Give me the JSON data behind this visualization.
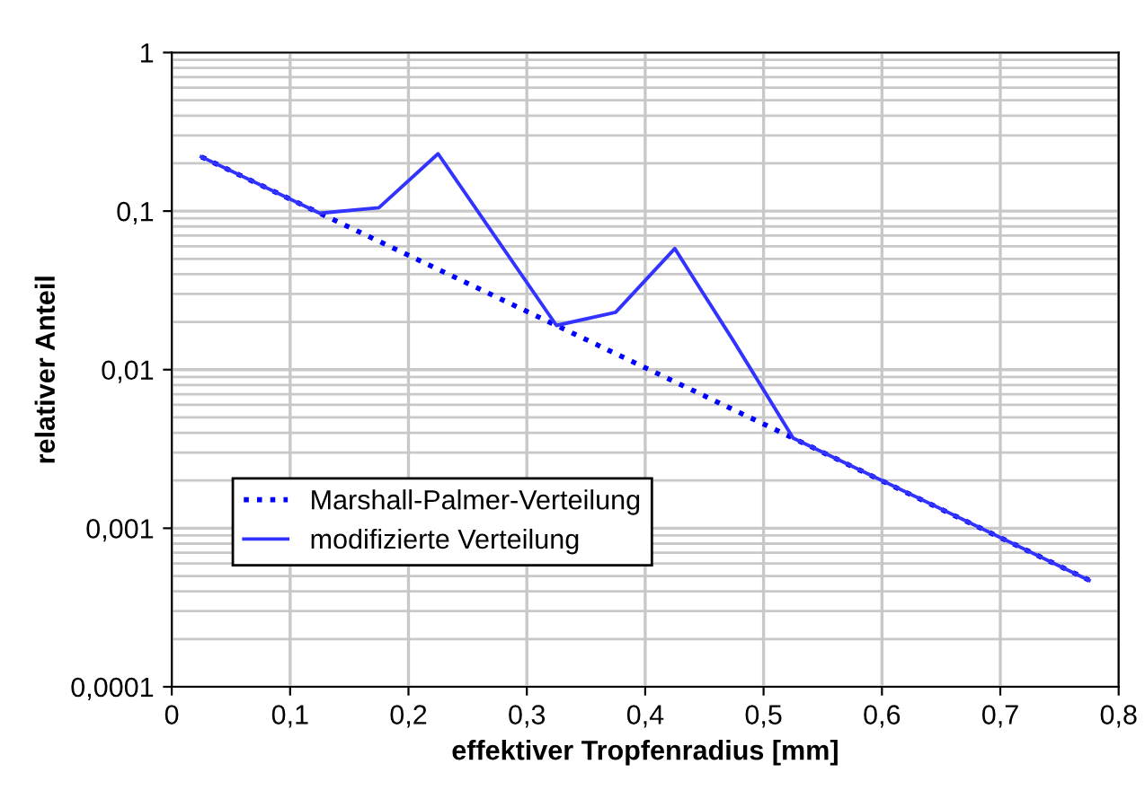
{
  "chart_data": {
    "type": "line",
    "xlabel": "effektiver Tropfenradius [mm]",
    "ylabel": "relativer Anteil",
    "log": "y",
    "xlim": [
      0,
      0.8
    ],
    "ylim": [
      0.0001,
      1
    ],
    "xticks": [
      0,
      {
        "value": 0.1,
        "label": "0,1"
      },
      {
        "value": 0.2,
        "label": "0,2"
      },
      {
        "value": 0.3,
        "label": "0,3"
      },
      {
        "value": 0.4,
        "label": "0,4"
      },
      {
        "value": 0.5,
        "label": "0,5"
      },
      {
        "value": 0.6,
        "label": "0,6"
      },
      {
        "value": 0.7,
        "label": "0,7"
      },
      {
        "value": 0.8,
        "label": "0,8"
      }
    ],
    "yticks": [
      {
        "value": 0.0001,
        "label": "0,0001"
      },
      {
        "value": 0.001,
        "label": "0,001"
      },
      {
        "value": 0.01,
        "label": "0,01"
      },
      {
        "value": 0.1,
        "label": "0,1"
      },
      1
    ],
    "grid": true,
    "legend": "bottom left",
    "series": [
      {
        "name": "Marshall-Palmer-Verteilung",
        "color": "#0000ff",
        "line_style": "dotted",
        "x": [
          0.025,
          0.125,
          0.325,
          0.525,
          0.775
        ],
        "values": [
          0.22,
          0.097,
          0.019,
          0.0037,
          0.00047
        ]
      },
      {
        "name": "modifizierte Verteilung",
        "color": "#3333ff",
        "line_style": "solid",
        "x": [
          0.025,
          0.125,
          0.175,
          0.225,
          0.325,
          0.375,
          0.425,
          0.475,
          0.525,
          0.6,
          0.775
        ],
        "values": [
          0.22,
          0.097,
          0.105,
          0.23,
          0.019,
          0.023,
          0.058,
          0.015,
          0.0037,
          0.002,
          0.00047
        ]
      }
    ]
  }
}
